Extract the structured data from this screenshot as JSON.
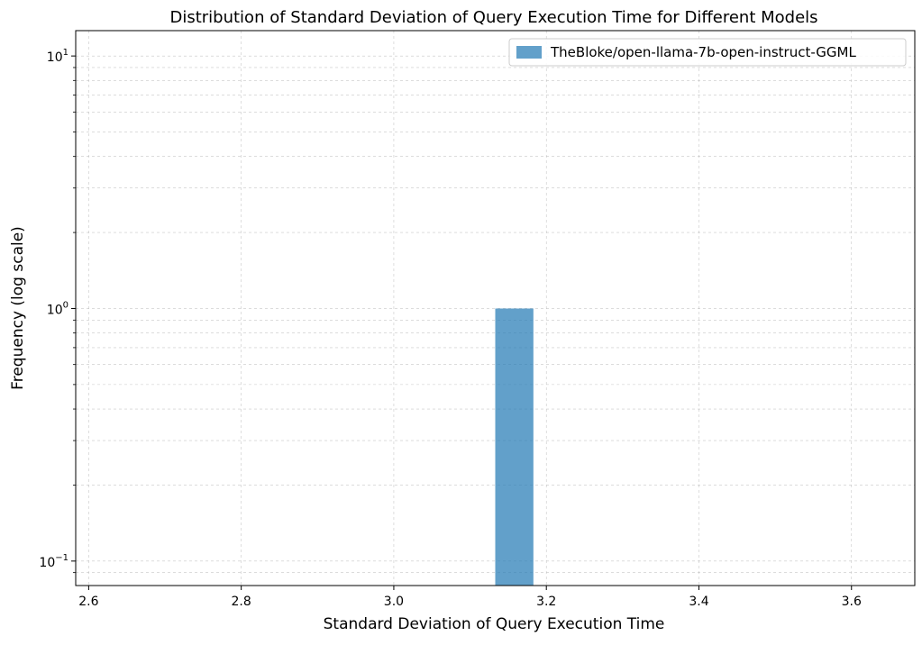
{
  "chart_data": {
    "type": "bar",
    "title": "Distribution of Standard Deviation of Query Execution Time for Different Models",
    "xlabel": "Standard Deviation of Query Execution Time",
    "ylabel": "Frequency (log scale)",
    "x_scale": "linear",
    "y_scale": "log",
    "xlim": [
      2.583,
      3.683
    ],
    "ylim": [
      0.08,
      12.6
    ],
    "x_ticks": [
      2.6,
      2.8,
      3.0,
      3.2,
      3.4,
      3.6
    ],
    "x_tick_labels": [
      "2.6",
      "2.8",
      "3.0",
      "3.2",
      "3.4",
      "3.6"
    ],
    "y_ticks": [
      {
        "value": 0.1,
        "base": "10",
        "exp": "−1"
      },
      {
        "value": 1,
        "base": "10",
        "exp": "0"
      },
      {
        "value": 10,
        "base": "10",
        "exp": "1"
      }
    ],
    "y_minor_ticks": [
      0.09,
      0.2,
      0.3,
      0.4,
      0.5,
      0.6,
      0.7,
      0.8,
      0.9,
      2,
      3,
      4,
      5,
      6,
      7,
      8,
      9
    ],
    "grid": true,
    "legend_position": "top-right",
    "series": [
      {
        "name": "TheBloke/open-llama-7b-open-instruct-GGML",
        "color": "#1f77b4",
        "opacity": 0.7,
        "bins": [
          {
            "x_start": 3.133,
            "x_end": 3.183,
            "value": 1
          }
        ]
      }
    ]
  }
}
